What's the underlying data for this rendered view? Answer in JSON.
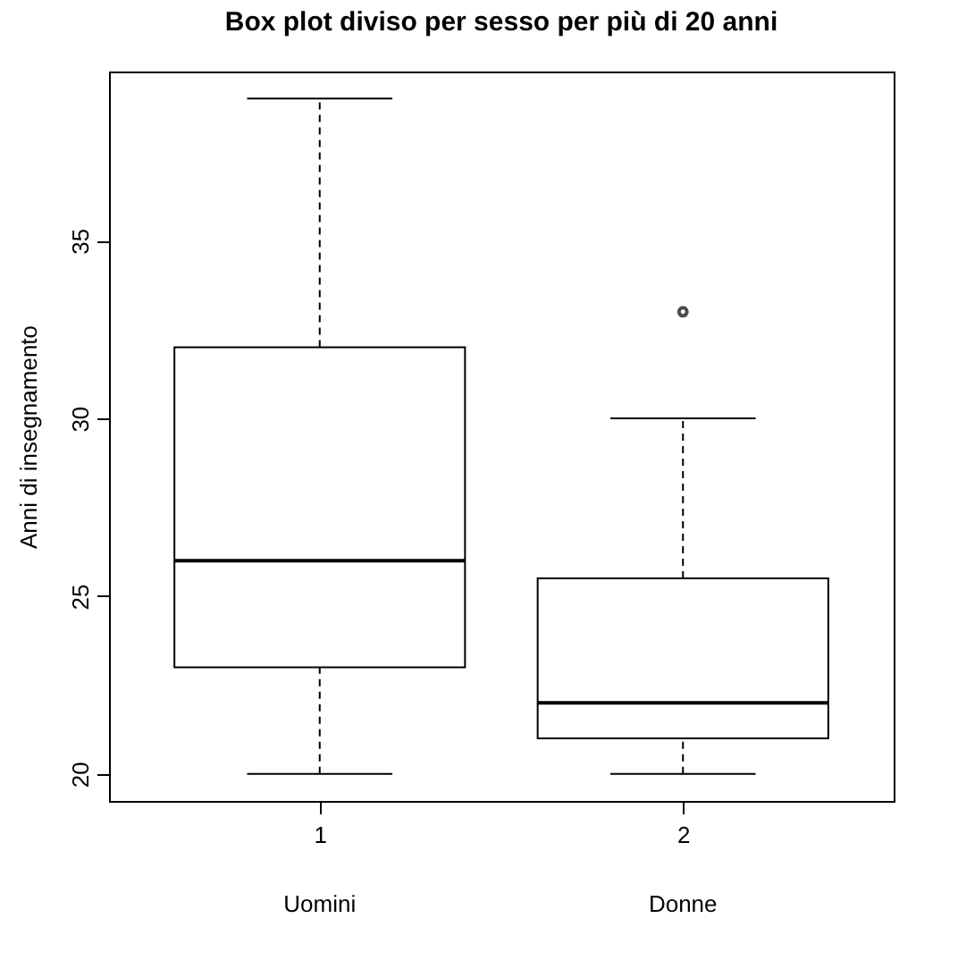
{
  "chart_data": {
    "type": "box",
    "title": "Box plot diviso per sesso per più di 20 anni",
    "ylabel": "Anni di insegnamento",
    "categories": [
      "1",
      "2"
    ],
    "boxes": [
      {
        "low": 20,
        "q1": 23,
        "median": 26,
        "q3": 32,
        "high": 39
      },
      {
        "low": 20,
        "q1": 21,
        "median": 22,
        "q3": 25.5,
        "high": 30,
        "outliers": [
          33
        ]
      }
    ],
    "ylim": [
      19.24,
      39.76
    ],
    "yticks": [
      20,
      25,
      30,
      35
    ],
    "grid": false,
    "annotations": [
      "Uomini",
      "Donne"
    ]
  }
}
